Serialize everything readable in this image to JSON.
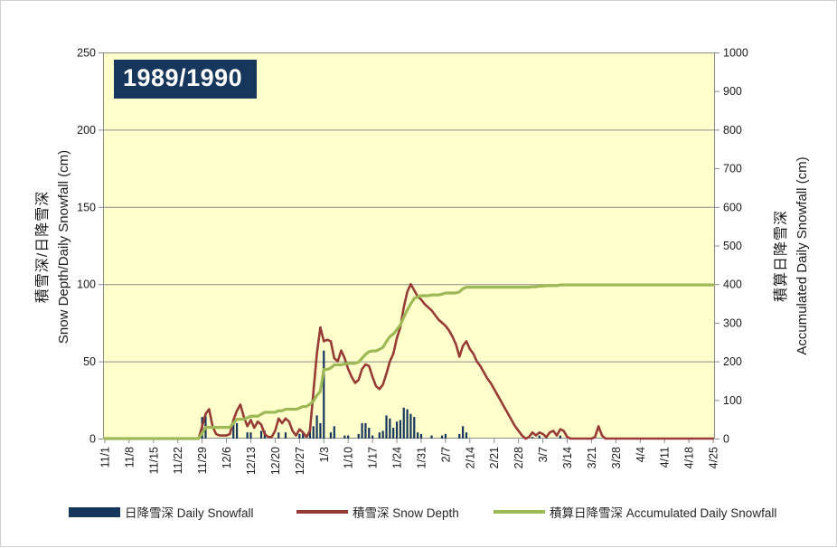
{
  "chart": {
    "title": "1989/1990",
    "colors": {
      "plot_background": "#FFFFCC",
      "outer_background": "#FFFFFF",
      "bar": "#16365C",
      "depth_line": "#973B36",
      "accumulated_line": "#9CB956",
      "grid": "#8C8C8C",
      "title_bg": "#16365C",
      "title_text": "#FFFFFF",
      "frame_border": "#CFCFCF"
    },
    "left_axis": {
      "title_ja": "積雪深/日降雪深",
      "title_en": "Snow Depth/Daily Snowfall (cm)",
      "min": 0,
      "max": 250,
      "ticks": [
        0,
        50,
        100,
        150,
        200,
        250
      ]
    },
    "right_axis": {
      "title_ja": "積算日降雪深",
      "title_en": "Accumulated Daily Snowfall (cm)",
      "min": 0,
      "max": 1000,
      "ticks": [
        0,
        100,
        200,
        300,
        400,
        500,
        600,
        700,
        800,
        900,
        1000
      ]
    },
    "x_axis": {
      "tick_interval_days": 7,
      "tick_labels": [
        "11/1",
        "11/8",
        "11/15",
        "11/22",
        "11/29",
        "12/6",
        "12/13",
        "12/20",
        "12/27",
        "1/3",
        "1/10",
        "1/17",
        "1/24",
        "1/31",
        "2/7",
        "2/14",
        "2/21",
        "2/28",
        "3/7",
        "3/14",
        "3/21",
        "3/28",
        "4/4",
        "4/11",
        "4/18",
        "4/25"
      ]
    },
    "legend": [
      {
        "label": "日降雪深 Daily Snowfall",
        "swatch": "bar",
        "color": "#16365C"
      },
      {
        "label": "積雪深 Snow Depth",
        "swatch": "line",
        "color": "#973B36"
      },
      {
        "label": "積算日降雪深 Accumulated Daily Snowfall",
        "swatch": "line",
        "color": "#9CB956"
      }
    ]
  },
  "chart_data": {
    "type": "combo",
    "x_start": "11/1",
    "x_end": "4/25",
    "num_days": 176,
    "grid": true,
    "legend_position": "bottom",
    "series": [
      {
        "name": "日降雪深 Daily Snowfall",
        "type": "bar",
        "axis": "left",
        "color": "#16365C",
        "values": [
          0,
          0,
          0,
          0,
          0,
          0,
          0,
          0,
          0,
          0,
          0,
          0,
          0,
          0,
          0,
          0,
          0,
          0,
          0,
          0,
          0,
          0,
          0,
          0,
          0,
          0,
          0,
          0,
          14,
          15,
          0,
          0,
          0,
          0,
          0,
          0,
          0,
          11,
          10,
          0,
          0,
          4,
          4,
          0,
          0,
          5,
          5,
          0,
          0,
          0,
          4,
          0,
          4,
          0,
          0,
          0,
          3,
          4,
          0,
          6,
          8,
          15,
          10,
          57,
          0,
          4,
          8,
          0,
          0,
          2,
          2,
          0,
          0,
          3,
          10,
          10,
          7,
          2,
          0,
          4,
          5,
          15,
          13,
          7,
          11,
          12,
          20,
          19,
          16,
          14,
          4,
          3,
          0,
          0,
          2,
          0,
          0,
          2,
          3,
          0,
          0,
          0,
          3,
          8,
          4,
          0,
          0,
          0,
          0,
          0,
          0,
          0,
          0,
          0,
          0,
          0,
          0,
          0,
          0,
          0,
          0,
          0,
          0,
          1,
          0,
          2,
          0,
          1,
          0,
          0,
          0,
          2,
          0,
          0,
          0,
          0,
          0,
          0,
          0,
          0,
          0,
          0,
          0,
          0,
          0,
          0,
          0,
          0,
          0,
          0,
          0,
          0,
          0,
          0,
          0,
          0,
          0,
          0,
          0,
          0,
          0,
          0,
          0,
          0,
          0,
          0,
          0,
          0,
          0,
          0,
          0,
          0,
          0,
          0,
          0,
          0
        ]
      },
      {
        "name": "積雪深 Snow Depth",
        "type": "line",
        "axis": "left",
        "color": "#973B36",
        "max_value": 100,
        "values": [
          0,
          0,
          0,
          0,
          0,
          0,
          0,
          0,
          0,
          0,
          0,
          0,
          0,
          0,
          0,
          0,
          0,
          0,
          0,
          0,
          0,
          0,
          0,
          0,
          0,
          0,
          0,
          0,
          8,
          16,
          19,
          8,
          3,
          2,
          2,
          2,
          3,
          12,
          18,
          22,
          14,
          8,
          12,
          7,
          11,
          9,
          3,
          1,
          1,
          5,
          13,
          10,
          13,
          11,
          5,
          2,
          6,
          4,
          1,
          5,
          30,
          55,
          72,
          63,
          64,
          63,
          52,
          50,
          57,
          52,
          45,
          40,
          36,
          38,
          45,
          48,
          47,
          40,
          34,
          32,
          35,
          42,
          50,
          55,
          65,
          72,
          85,
          95,
          100,
          96,
          92,
          90,
          87,
          85,
          83,
          80,
          77,
          75,
          73,
          70,
          66,
          61,
          53,
          60,
          63,
          58,
          55,
          50,
          47,
          43,
          39,
          36,
          32,
          28,
          24,
          20,
          16,
          12,
          8,
          5,
          2,
          0,
          1,
          4,
          2,
          4,
          3,
          1,
          4,
          5,
          2,
          6,
          5,
          1,
          0,
          0,
          0,
          0,
          0,
          0,
          0,
          1,
          8,
          2,
          0,
          0,
          0,
          0,
          0,
          0,
          0,
          0,
          0,
          0,
          0,
          0,
          0,
          0,
          0,
          0,
          0,
          0,
          0,
          0,
          0,
          0,
          0,
          0,
          0,
          0,
          0,
          0,
          0,
          0,
          0,
          0
        ]
      },
      {
        "name": "積算日降雪深 Accumulated Daily Snowfall",
        "type": "line",
        "axis": "right",
        "color": "#9CB956",
        "derived_from": "cumulative sum of daily snowfall",
        "total": 398
      }
    ]
  }
}
